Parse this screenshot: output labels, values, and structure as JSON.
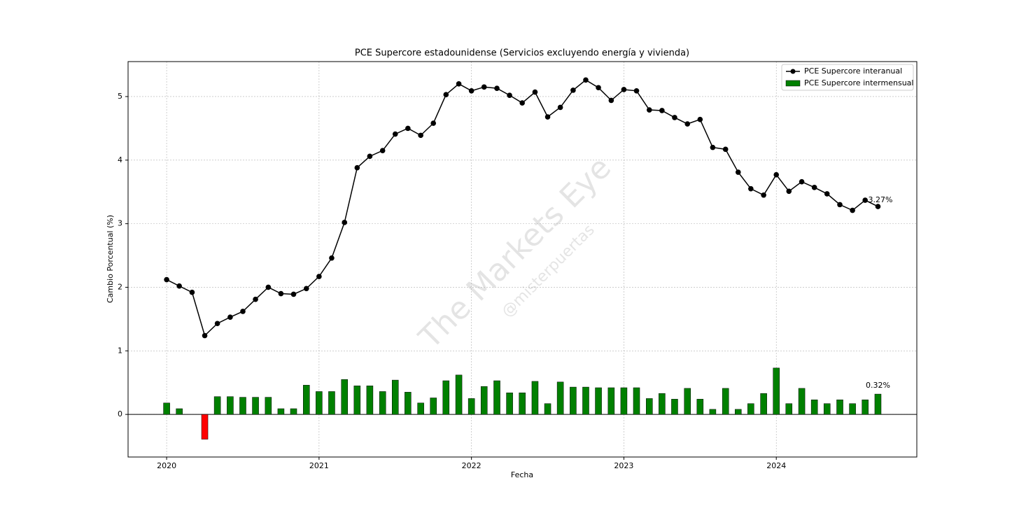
{
  "chart_data": {
    "type": "line",
    "title": "PCE Supercore estadounidense (Servicios excluyendo energía y vivienda)",
    "x_label": "Fecha",
    "y_label": "Cambio Porcentual (%)",
    "watermark": [
      "The Markets Eye",
      "@misterpuertas"
    ],
    "x": [
      2020,
      2020.083,
      2020.167,
      2020.25,
      2020.333,
      2020.417,
      2020.5,
      2020.583,
      2020.667,
      2020.75,
      2020.833,
      2020.917,
      2021,
      2021.083,
      2021.167,
      2021.25,
      2021.333,
      2021.417,
      2021.5,
      2021.583,
      2021.667,
      2021.75,
      2021.833,
      2021.917,
      2022,
      2022.083,
      2022.167,
      2022.25,
      2022.333,
      2022.417,
      2022.5,
      2022.583,
      2022.667,
      2022.75,
      2022.833,
      2022.917,
      2023,
      2023.083,
      2023.167,
      2023.25,
      2023.333,
      2023.417,
      2023.5,
      2023.583,
      2023.667,
      2023.75,
      2023.833,
      2023.917,
      2024,
      2024.083,
      2024.167,
      2024.25,
      2024.333,
      2024.417,
      2024.5,
      2024.583,
      2024.667
    ],
    "series": [
      {
        "name": "PCE Supercore interanual",
        "type": "line",
        "color": "#000000",
        "values": [
          2.12,
          2.02,
          1.92,
          1.24,
          1.43,
          1.53,
          1.62,
          1.81,
          2.0,
          1.9,
          1.89,
          1.98,
          2.17,
          2.46,
          3.02,
          3.88,
          4.06,
          4.15,
          4.41,
          4.5,
          4.39,
          4.58,
          5.03,
          5.2,
          5.09,
          5.15,
          5.13,
          5.02,
          4.9,
          5.07,
          4.68,
          4.83,
          5.1,
          5.26,
          5.14,
          4.94,
          5.11,
          5.09,
          4.79,
          4.78,
          4.67,
          4.57,
          4.64,
          4.2,
          4.17,
          3.81,
          3.55,
          3.45,
          3.77,
          3.51,
          3.66,
          3.57,
          3.47,
          3.3,
          3.21,
          3.37,
          3.27
        ],
        "value_labels": [
          null,
          null,
          null,
          null,
          null,
          null,
          null,
          null,
          null,
          null,
          null,
          null,
          null,
          null,
          null,
          null,
          null,
          null,
          null,
          null,
          null,
          null,
          null,
          null,
          null,
          null,
          null,
          null,
          null,
          null,
          null,
          null,
          null,
          null,
          null,
          null,
          null,
          null,
          null,
          null,
          null,
          null,
          null,
          null,
          null,
          null,
          null,
          null,
          null,
          null,
          null,
          null,
          null,
          null,
          null,
          null,
          "3.27%"
        ]
      },
      {
        "name": "PCE Supercore intermensual",
        "type": "bar",
        "color": "#008000",
        "negative_color": "#ff0000",
        "values": [
          0.18,
          0.09,
          0,
          -0.39,
          0.28,
          0.28,
          0.27,
          0.27,
          0.27,
          0.09,
          0.09,
          0.46,
          0.36,
          0.36,
          0.55,
          0.45,
          0.45,
          0.36,
          0.54,
          0.35,
          0.18,
          0.26,
          0.53,
          0.62,
          0.25,
          0.44,
          0.53,
          0.34,
          0.34,
          0.52,
          0.17,
          0.51,
          0.43,
          0.43,
          0.42,
          0.42,
          0.42,
          0.42,
          0.25,
          0.33,
          0.24,
          0.41,
          0.24,
          0.08,
          0.41,
          0.08,
          0.17,
          0.33,
          0.73,
          0.17,
          0.41,
          0.23,
          0.17,
          0.23,
          0.17,
          0.23,
          0.32
        ],
        "value_labels": [
          null,
          null,
          null,
          null,
          null,
          null,
          null,
          null,
          null,
          null,
          null,
          null,
          null,
          null,
          null,
          null,
          null,
          null,
          null,
          null,
          null,
          null,
          null,
          null,
          null,
          null,
          null,
          null,
          null,
          null,
          null,
          null,
          null,
          null,
          null,
          null,
          null,
          null,
          null,
          null,
          null,
          null,
          null,
          null,
          null,
          null,
          null,
          null,
          null,
          null,
          null,
          null,
          null,
          null,
          null,
          null,
          "0.32%"
        ]
      }
    ],
    "xlim": [
      2019.747,
      2024.922
    ],
    "xticks": [
      2020,
      2021,
      2022,
      2023,
      2024
    ],
    "ylim": [
      -0.67,
      5.55
    ],
    "yticks": [
      0,
      1,
      2,
      3,
      4,
      5
    ],
    "grid": true,
    "legend_loc": "upper right"
  }
}
